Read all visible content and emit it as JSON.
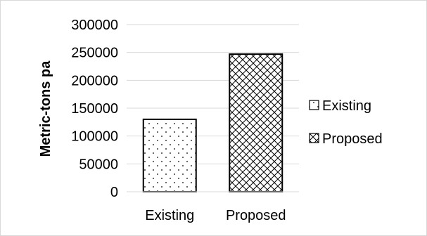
{
  "chart_data": {
    "type": "bar",
    "categories": [
      "Existing",
      "Proposed"
    ],
    "values": [
      130000,
      247000
    ],
    "ylabel": "Metric-tons pa",
    "xlabel": "",
    "ylim": [
      0,
      300000
    ],
    "yticks": [
      0,
      50000,
      100000,
      150000,
      200000,
      250000,
      300000
    ],
    "ytick_labels": [
      "0",
      "50000",
      "100000",
      "150000",
      "200000",
      "250000",
      "300000"
    ],
    "grid": true,
    "legend": {
      "position": "right",
      "entries": [
        "Existing",
        "Proposed"
      ]
    },
    "patterns": [
      "dots",
      "crosshatch"
    ]
  }
}
